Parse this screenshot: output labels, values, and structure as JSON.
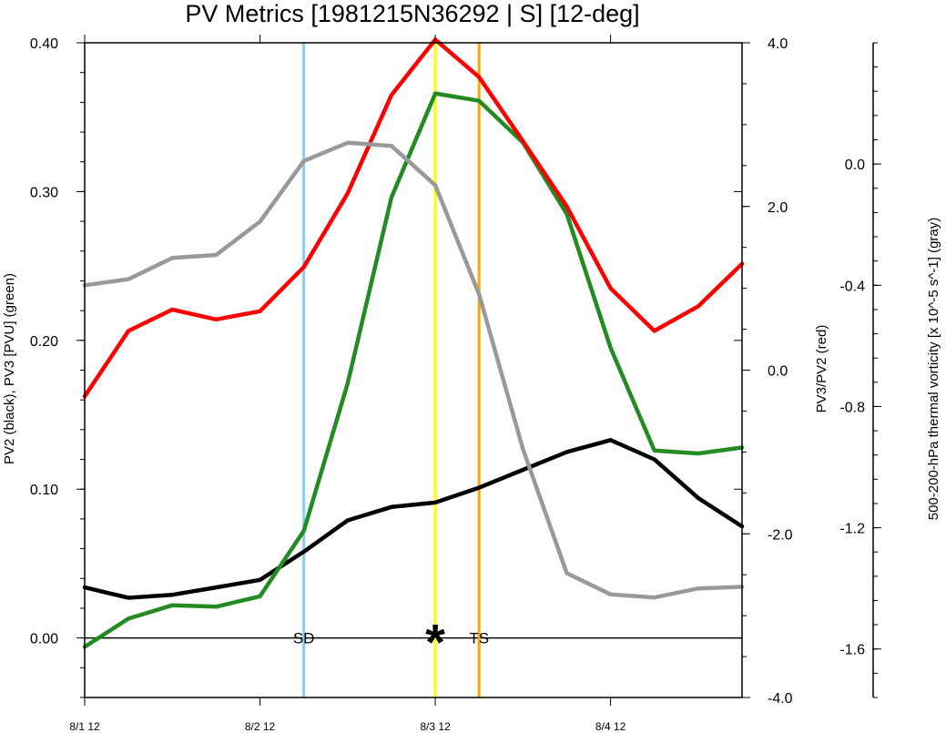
{
  "chart_data": {
    "type": "line",
    "title": "PV Metrics [1981215N36292 | S] [12-deg]",
    "x": {
      "tick_labels": [
        "8/1 12",
        "8/2 12",
        "8/3 12",
        "8/4 12"
      ],
      "tick_values_days": [
        0,
        1,
        2,
        3
      ],
      "range_days": [
        0,
        3.75
      ]
    },
    "axes": {
      "left": {
        "label": "PV2 (black), PV3 [PVU] (green)",
        "range": [
          -0.04,
          0.4
        ],
        "tick_values": [
          0.0,
          0.1,
          0.2,
          0.3,
          0.4
        ],
        "tick_labels": [
          "0.00",
          "0.10",
          "0.20",
          "0.30",
          "0.40"
        ]
      },
      "right_inner": {
        "label": "PV3/PV2 (red)",
        "range": [
          -4.0,
          4.0
        ],
        "tick_values": [
          -4.0,
          -2.0,
          0.0,
          2.0,
          4.0
        ],
        "tick_labels": [
          "-4.0",
          "-2.0",
          "0.0",
          "2.0",
          "4.0"
        ]
      },
      "right_outer": {
        "label": "500-200-hPa thermal vorticity [x 10^-5 s^-1] (gray)",
        "range": [
          -1.76,
          0.4
        ],
        "tick_values": [
          -1.6,
          -1.2,
          -0.8,
          -0.4,
          0.0
        ],
        "tick_labels": [
          "-1.6",
          "-1.2",
          "-0.8",
          "-0.4",
          "0.0"
        ]
      }
    },
    "x_values_days": [
      0,
      0.25,
      0.5,
      0.75,
      1.0,
      1.25,
      1.5,
      1.75,
      2.0,
      2.25,
      2.5,
      2.75,
      3.0,
      3.25,
      3.5,
      3.75
    ],
    "series": [
      {
        "color": "#000000",
        "axis": "left",
        "values": [
          0.034,
          0.027,
          0.029,
          0.034,
          0.039,
          0.058,
          0.079,
          0.088,
          0.091,
          0.101,
          0.113,
          0.125,
          0.133,
          0.12,
          0.094,
          0.075
        ]
      },
      {
        "color": "#228b22",
        "axis": "left",
        "values": [
          -0.006,
          0.013,
          0.022,
          0.021,
          0.028,
          0.072,
          0.171,
          0.296,
          0.366,
          0.361,
          0.333,
          0.285,
          0.195,
          0.126,
          0.124,
          0.128
        ]
      },
      {
        "color": "#ff0000",
        "axis": "right_inner",
        "values": [
          -0.32,
          0.48,
          0.74,
          0.62,
          0.72,
          1.26,
          2.16,
          3.36,
          4.04,
          3.58,
          2.8,
          2.0,
          1.0,
          0.48,
          0.78,
          1.3
        ]
      },
      {
        "color": "#999999",
        "axis": "right_outer",
        "values": [
          -0.4,
          -0.38,
          -0.31,
          -0.3,
          -0.19,
          0.01,
          0.07,
          0.06,
          -0.07,
          -0.43,
          -0.94,
          -1.35,
          -1.42,
          -1.43,
          -1.4,
          -1.395
        ]
      }
    ],
    "vertical_markers": [
      {
        "x_days": 1.25,
        "color": "#87ceeb"
      },
      {
        "x_days": 2.0,
        "color": "#ffff00"
      },
      {
        "x_days": 2.25,
        "color": "#ffa500"
      }
    ],
    "zero_line": {
      "y": 0.0,
      "axis": "left"
    },
    "annotations": [
      {
        "text": "SD",
        "x_days": 1.25
      },
      {
        "text": "TS",
        "x_days": 2.25
      }
    ],
    "star_marker": {
      "symbol": "*",
      "x_days": 2.0,
      "y": 0.0
    },
    "grid": false
  }
}
